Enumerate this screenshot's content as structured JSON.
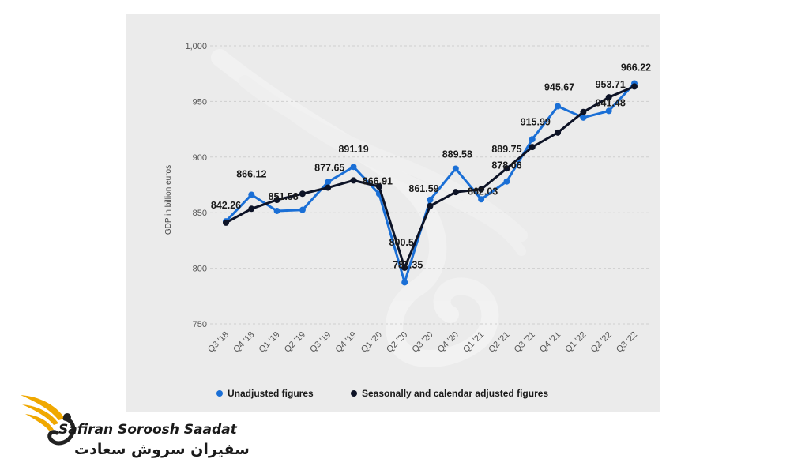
{
  "chart_data": {
    "type": "line",
    "title": "",
    "xlabel": "",
    "ylabel": "GDP in billion euros",
    "ylim": [
      750,
      1000
    ],
    "yticks": [
      750,
      800,
      850,
      900,
      950,
      1000
    ],
    "ytick_labels": [
      "750",
      "800",
      "850",
      "900",
      "950",
      "1,000"
    ],
    "grid": "horizontal-dashed",
    "categories": [
      "Q3 '18",
      "Q4 '18",
      "Q1 '19",
      "Q2 '19",
      "Q3 '19",
      "Q4 '19",
      "Q1 '20",
      "Q2 '20",
      "Q3 '20",
      "Q4 '20",
      "Q1 '21",
      "Q2 '21",
      "Q3 '21",
      "Q4 '21",
      "Q1 '22",
      "Q2 '22",
      "Q3 '22"
    ],
    "series": [
      {
        "name": "Unadjusted figures",
        "color": "#1a6fd6",
        "values": [
          842.26,
          866.12,
          851.58,
          852.5,
          877.65,
          891.19,
          866.91,
          787.35,
          861.59,
          889.58,
          862.03,
          878.06,
          915.99,
          945.67,
          935.5,
          941.48,
          966.22
        ]
      },
      {
        "name": "Seasonally and calendar adjusted figures",
        "color": "#0d1326",
        "values": [
          841.0,
          853.5,
          861.5,
          867.0,
          872.5,
          879.0,
          873.5,
          800.5,
          856.0,
          868.5,
          871.0,
          889.75,
          909.0,
          922.0,
          940.5,
          953.71,
          963.5
        ]
      }
    ],
    "annotations": [
      {
        "text": "842.26",
        "cat": 0,
        "value": 842.26
      },
      {
        "text": "866.12",
        "cat": 1,
        "value": 866.12
      },
      {
        "text": "851.58",
        "cat": 2,
        "value": 851.58
      },
      {
        "text": "877.65",
        "cat": 4,
        "value": 877.65
      },
      {
        "text": "891.19",
        "cat": 5,
        "value": 891.19
      },
      {
        "text": "866.91",
        "cat": 6,
        "value": 866.91
      },
      {
        "text": "800.5",
        "cat": 7,
        "value": 800.5
      },
      {
        "text": "787.35",
        "cat": 7,
        "value": 787.35
      },
      {
        "text": "861.59",
        "cat": 8,
        "value": 861.59
      },
      {
        "text": "889.58",
        "cat": 9,
        "value": 889.58
      },
      {
        "text": "862.03",
        "cat": 10,
        "value": 862.03
      },
      {
        "text": "889.75",
        "cat": 11,
        "value": 889.75
      },
      {
        "text": "878.06",
        "cat": 11,
        "value": 878.06
      },
      {
        "text": "915.99",
        "cat": 12,
        "value": 915.99
      },
      {
        "text": "945.67",
        "cat": 13,
        "value": 945.67
      },
      {
        "text": "953.71",
        "cat": 15,
        "value": 953.71
      },
      {
        "text": "941.48",
        "cat": 15,
        "value": 941.48
      },
      {
        "text": "966.22",
        "cat": 16,
        "value": 966.22
      }
    ],
    "legend": "bottom-center"
  },
  "brand": {
    "latin": "Safiran Soroosh Saadat",
    "persian": "سفیران سروش سعادت"
  }
}
